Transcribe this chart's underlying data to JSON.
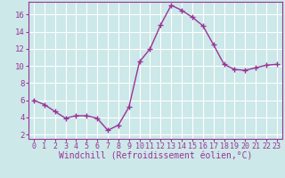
{
  "x": [
    0,
    1,
    2,
    3,
    4,
    5,
    6,
    7,
    8,
    9,
    10,
    11,
    12,
    13,
    14,
    15,
    16,
    17,
    18,
    19,
    20,
    21,
    22,
    23
  ],
  "y": [
    6.0,
    5.5,
    4.7,
    3.9,
    4.2,
    4.2,
    3.9,
    2.5,
    3.1,
    5.2,
    10.5,
    12.0,
    14.8,
    17.1,
    16.5,
    15.7,
    14.7,
    12.5,
    10.2,
    9.6,
    9.5,
    9.8,
    10.1,
    10.2
  ],
  "line_color": "#993399",
  "marker": "+",
  "marker_size": 4,
  "linewidth": 1.0,
  "xlabel": "Windchill (Refroidissement éolien,°C)",
  "xlim": [
    -0.5,
    23.5
  ],
  "ylim": [
    1.5,
    17.5
  ],
  "yticks": [
    2,
    4,
    6,
    8,
    10,
    12,
    14,
    16
  ],
  "xticks": [
    0,
    1,
    2,
    3,
    4,
    5,
    6,
    7,
    8,
    9,
    10,
    11,
    12,
    13,
    14,
    15,
    16,
    17,
    18,
    19,
    20,
    21,
    22,
    23
  ],
  "bg_color": "#cce8e8",
  "grid_color": "#ffffff",
  "line_color_spine": "#993399",
  "label_color": "#993399",
  "xlabel_fontsize": 7,
  "tick_fontsize": 6,
  "ytick_fontsize": 6.5,
  "fig_width": 3.2,
  "fig_height": 2.0,
  "dpi": 100
}
